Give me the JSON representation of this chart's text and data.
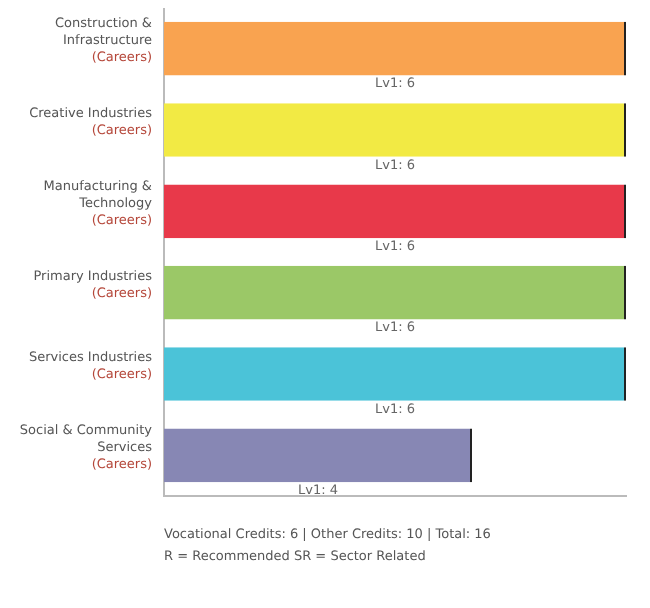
{
  "chart_data": {
    "type": "bar",
    "orientation": "horizontal",
    "relative": false,
    "categories": [
      "Construction &\nInfrastructure\n(Careers)",
      "Creative Industries\n(Careers)",
      "Manufacturing &\nTechnology\n(Careers)",
      "Primary Industries\n(Careers)",
      "Services Industries\n(Careers)",
      "Social & Community\nServices\n(Careers)"
    ],
    "values": [
      6,
      6,
      6,
      6,
      6,
      4
    ],
    "colors": [
      "#f9a350",
      "#f2ea44",
      "#e8394a",
      "#9bc867",
      "#4bc3d8",
      "#8787b4"
    ],
    "value_labels": [
      "Lv1: 6",
      "Lv1: 6",
      "Lv1: 6",
      "Lv1: 6",
      "Lv1: 6",
      "Lv1: 4"
    ],
    "grid": false,
    "legend": false,
    "annotations": [
      "Vocational Credits: 6 | Other Credits: 10 | Total: 16",
      "R = Recommended SR = Sector Related"
    ]
  }
}
